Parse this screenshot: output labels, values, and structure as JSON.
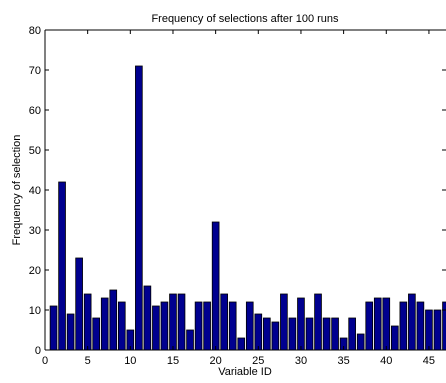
{
  "chart_data": {
    "type": "bar",
    "title": "Frequency of selections after 100 runs",
    "xlabel": "Variable ID",
    "ylabel": "Frequency of selection",
    "xlim": [
      0,
      47
    ],
    "ylim": [
      0,
      80
    ],
    "xticks": [
      0,
      5,
      10,
      15,
      20,
      25,
      30,
      35,
      40,
      45
    ],
    "yticks": [
      0,
      10,
      20,
      30,
      40,
      50,
      60,
      70,
      80
    ],
    "bar_color": "#00008f",
    "x": [
      1,
      2,
      3,
      4,
      5,
      6,
      7,
      8,
      9,
      10,
      11,
      12,
      13,
      14,
      15,
      16,
      17,
      18,
      19,
      20,
      21,
      22,
      23,
      24,
      25,
      26,
      27,
      28,
      29,
      30,
      31,
      32,
      33,
      34,
      35,
      36,
      37,
      38,
      39,
      40,
      41,
      42,
      43,
      44,
      45,
      46,
      47
    ],
    "values": [
      11,
      42,
      9,
      23,
      14,
      8,
      13,
      15,
      12,
      5,
      71,
      16,
      11,
      12,
      14,
      14,
      5,
      12,
      12,
      32,
      14,
      12,
      3,
      12,
      9,
      8,
      7,
      14,
      8,
      13,
      8,
      14,
      8,
      8,
      3,
      8,
      4,
      12,
      13,
      13,
      6,
      12,
      14,
      12,
      10,
      10,
      12
    ]
  }
}
